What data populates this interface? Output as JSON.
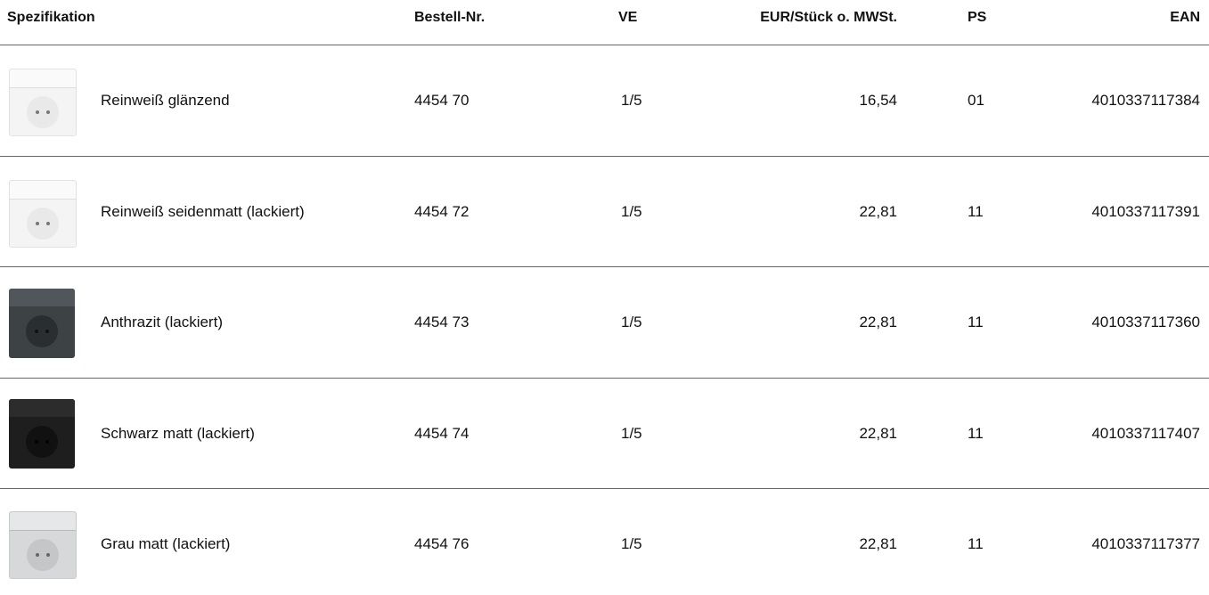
{
  "table": {
    "headers": [
      "Spezifikation",
      "Bestell-Nr.",
      "VE",
      "EUR/Stück o. MWSt.",
      "PS",
      "EAN"
    ],
    "rows": [
      [
        "Reinweiß glänzend",
        "4454 70",
        "1/5",
        "16,54",
        "01",
        "4010337117384"
      ],
      [
        "Reinweiß seidenmatt (lackiert)",
        "4454 72",
        "1/5",
        "22,81",
        "11",
        "4010337117391"
      ],
      [
        "Anthrazit (lackiert)",
        "4454 73",
        "1/5",
        "22,81",
        "11",
        "4010337117360"
      ],
      [
        "Schwarz matt (lackiert)",
        "4454 74",
        "1/5",
        "22,81",
        "11",
        "4010337117407"
      ],
      [
        "Grau matt (lackiert)",
        "4454 76",
        "1/5",
        "22,81",
        "11",
        "4010337117377"
      ]
    ]
  }
}
